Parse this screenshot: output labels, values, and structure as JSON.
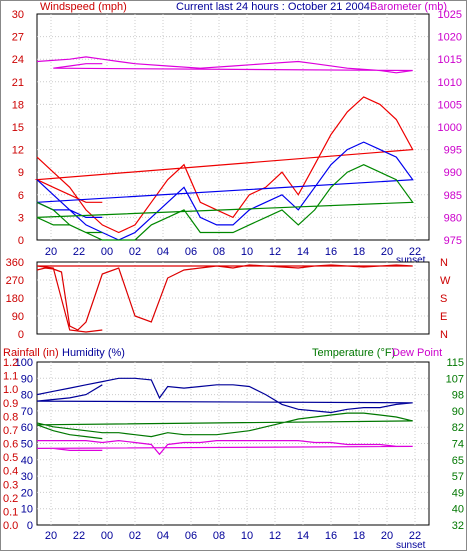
{
  "chart_data": [
    {
      "type": "line",
      "panel": "wind-barometer",
      "header_left": "Windspeed (mph)",
      "header_center": "Current last 24 hours : October 21 2004",
      "header_right": "Barometer (mb)",
      "y_left_ticks": [
        "30",
        "27",
        "24",
        "21",
        "18",
        "15",
        "12",
        "9",
        "6",
        "3",
        "0"
      ],
      "y_left_range": [
        0,
        30
      ],
      "y_right_ticks": [
        "1025",
        "1020",
        "1015",
        "1010",
        "1005",
        "1000",
        "995",
        "990",
        "985",
        "980",
        "975"
      ],
      "y_right_range": [
        975,
        1025
      ],
      "x_ticks": [
        "20",
        "22",
        "00",
        "02",
        "04",
        "06",
        "08",
        "10",
        "12",
        "14",
        "16",
        "18",
        "20",
        "22"
      ],
      "x_hours_start": 19,
      "x_hours_span": 24,
      "x_note": "sunset",
      "series": [
        {
          "key": "barometer",
          "axis": "right",
          "color": "#dd00dd",
          "x": [
            19,
            21,
            22,
            23,
            0,
            1,
            3,
            5,
            7,
            9,
            11,
            12,
            14,
            16,
            17,
            18,
            20,
            21,
            22,
            23
          ],
          "y": [
            1014.5,
            1015,
            1015.5,
            1015,
            1014.5,
            1014,
            1013.5,
            1013,
            1013.5,
            1014,
            1014.5,
            1014,
            1013,
            1012.5,
            1012,
            1012.5,
            1013,
            1013.5,
            1014,
            1014
          ]
        },
        {
          "key": "gust",
          "axis": "left",
          "color": "#ee0000",
          "x": [
            19,
            20,
            21,
            22,
            23,
            0,
            1,
            2,
            3,
            4,
            5,
            6,
            7,
            8,
            9,
            10,
            11,
            12,
            13,
            14,
            15,
            16,
            17,
            18,
            19,
            20,
            21,
            22,
            23
          ],
          "y": [
            11,
            9,
            7,
            4,
            2,
            1,
            2,
            5,
            8,
            10,
            5,
            4,
            3,
            6,
            7,
            9,
            6,
            10,
            14,
            17,
            19,
            18,
            16,
            12,
            8,
            7,
            6,
            5,
            5
          ]
        },
        {
          "key": "average",
          "axis": "left",
          "color": "#0000ee",
          "x": [
            19,
            20,
            21,
            22,
            23,
            0,
            1,
            2,
            3,
            4,
            5,
            6,
            7,
            8,
            9,
            10,
            11,
            12,
            13,
            14,
            15,
            16,
            17,
            18,
            19,
            20,
            21,
            22,
            23
          ],
          "y": [
            8,
            6,
            4,
            2,
            1,
            0,
            1,
            3,
            5,
            7,
            3,
            2,
            2,
            4,
            5,
            6,
            4,
            7,
            10,
            12,
            13,
            12,
            11,
            8,
            5,
            4,
            4,
            3,
            3
          ]
        },
        {
          "key": "minimum",
          "axis": "left",
          "color": "#008800",
          "x": [
            19,
            20,
            21,
            22,
            23,
            0,
            1,
            2,
            3,
            4,
            5,
            6,
            7,
            8,
            9,
            10,
            11,
            12,
            13,
            14,
            15,
            16,
            17,
            18,
            19,
            20,
            21,
            22,
            23
          ],
          "y": [
            5,
            4,
            2,
            1,
            0,
            0,
            0,
            2,
            3,
            4,
            1,
            1,
            1,
            2,
            3,
            4,
            2,
            4,
            7,
            9,
            10,
            9,
            8,
            5,
            3,
            2,
            2,
            1,
            1
          ]
        }
      ]
    },
    {
      "type": "line",
      "panel": "wind-direction",
      "y_left_ticks": [
        "360",
        "270",
        "180",
        "90",
        "0"
      ],
      "y_range": [
        0,
        360
      ],
      "y_right_ticks": [
        "N",
        "W",
        "S",
        "E",
        "N"
      ],
      "series": [
        {
          "key": "direction",
          "color": "#dd0000",
          "x": [
            19,
            19.5,
            20,
            20.5,
            21,
            21.5,
            22,
            22.5,
            23,
            0,
            1,
            2,
            3,
            4,
            5,
            6,
            7,
            8,
            9,
            10,
            11,
            12,
            13,
            14,
            15,
            16,
            17,
            18,
            19,
            20,
            21,
            22,
            23
          ],
          "y": [
            320,
            330,
            325,
            310,
            40,
            20,
            60,
            180,
            300,
            330,
            90,
            60,
            280,
            320,
            330,
            340,
            330,
            345,
            340,
            335,
            330,
            340,
            345,
            340,
            335,
            340,
            345,
            340,
            340,
            330,
            20,
            10,
            20
          ]
        }
      ]
    },
    {
      "type": "line",
      "panel": "humidity-temperature",
      "header_left": "Rainfall (in)",
      "header_humidity": "Humidity (%)",
      "header_temperature": "Temperature (°F)",
      "header_dewpoint": "Dew Point",
      "y_humidity_ticks": [
        "100",
        "90",
        "80",
        "70",
        "60",
        "50",
        "40",
        "30",
        "20",
        "10",
        "0"
      ],
      "y_rain_ticks": [
        "1.2",
        "1.1",
        "1.0",
        "0.9",
        "0.8",
        "0.7",
        "0.6",
        "0.5",
        "0.4",
        "0.3",
        "0.2",
        "0.1",
        "0.0"
      ],
      "y_temp_ticks": [
        "115",
        "107",
        "98",
        "90",
        "82",
        "74",
        "65",
        "57",
        "49",
        "40",
        "32"
      ],
      "y_temp_range": [
        32,
        115
      ],
      "x_ticks": [
        "20",
        "22",
        "00",
        "02",
        "04",
        "06",
        "08",
        "10",
        "12",
        "14",
        "16",
        "18",
        "20",
        "22"
      ],
      "x_note": "sunset",
      "series": [
        {
          "key": "humidity",
          "axis": "humidity",
          "color": "#000099",
          "x": [
            19,
            20,
            21,
            22,
            23,
            0,
            1,
            2,
            2.5,
            3,
            4,
            5,
            6,
            7,
            8,
            9,
            10,
            11,
            12,
            13,
            14,
            15,
            16,
            17,
            18,
            19,
            20,
            21,
            22,
            23
          ],
          "y": [
            80,
            82,
            84,
            86,
            88,
            90,
            90,
            89,
            78,
            85,
            84,
            85,
            86,
            86,
            85,
            80,
            74,
            71,
            70,
            69,
            71,
            72,
            72,
            74,
            75,
            76,
            77,
            78,
            80,
            86
          ]
        },
        {
          "key": "temperature",
          "axis": "temp",
          "color": "#007700",
          "x": [
            19,
            20,
            21,
            22,
            23,
            0,
            1,
            2,
            3,
            4,
            5,
            6,
            7,
            8,
            9,
            10,
            11,
            12,
            13,
            14,
            15,
            16,
            17,
            18,
            19,
            20,
            21,
            22,
            23
          ],
          "y": [
            84,
            82,
            81,
            80,
            79,
            79,
            78,
            77,
            79,
            78,
            78,
            78,
            79,
            80,
            82,
            84,
            86,
            87,
            88,
            89,
            89,
            88,
            87,
            85,
            83,
            80,
            78,
            77,
            76
          ]
        },
        {
          "key": "dewpoint",
          "axis": "temp",
          "color": "#dd00dd",
          "x": [
            19,
            20,
            21,
            22,
            23,
            0,
            1,
            2,
            2.5,
            3,
            4,
            5,
            6,
            7,
            8,
            9,
            10,
            11,
            12,
            13,
            14,
            15,
            16,
            17,
            18,
            19,
            20,
            21,
            22,
            23
          ],
          "y": [
            75,
            75,
            75,
            75,
            74,
            75,
            74,
            73,
            68,
            73,
            74,
            74,
            75,
            75,
            75,
            75,
            75,
            75,
            74,
            74,
            73,
            73,
            73,
            72,
            72,
            71,
            71,
            70,
            70,
            70
          ]
        }
      ]
    }
  ]
}
